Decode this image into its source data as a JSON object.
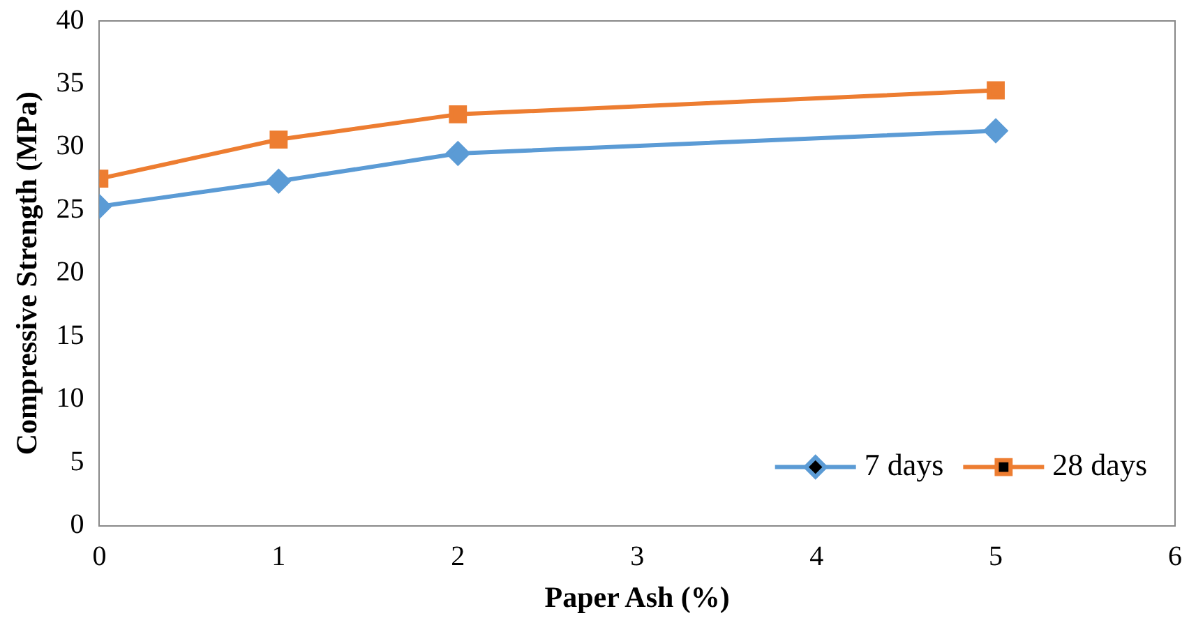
{
  "chart_data": {
    "type": "line",
    "xlabel": "Paper Ash (%)",
    "ylabel": "Compressive Strength (MPa)",
    "xlim": [
      0,
      6
    ],
    "xticks": [
      0,
      1,
      2,
      3,
      4,
      5,
      6
    ],
    "ylim": [
      0,
      40
    ],
    "yticks": [
      0,
      5,
      10,
      15,
      20,
      25,
      30,
      35,
      40
    ],
    "grid": false,
    "legend": "bottom right",
    "line_style": "solid",
    "series": [
      {
        "name": "7 days",
        "color": "#5b9bd5",
        "marker": "diamond",
        "x": [
          0,
          1,
          2,
          5
        ],
        "values": [
          25.3,
          27.3,
          29.5,
          31.3
        ]
      },
      {
        "name": "28 days",
        "color": "#ed7d31",
        "marker": "square",
        "x": [
          0,
          1,
          2,
          5
        ],
        "values": [
          27.5,
          30.6,
          32.6,
          34.5
        ]
      }
    ]
  }
}
